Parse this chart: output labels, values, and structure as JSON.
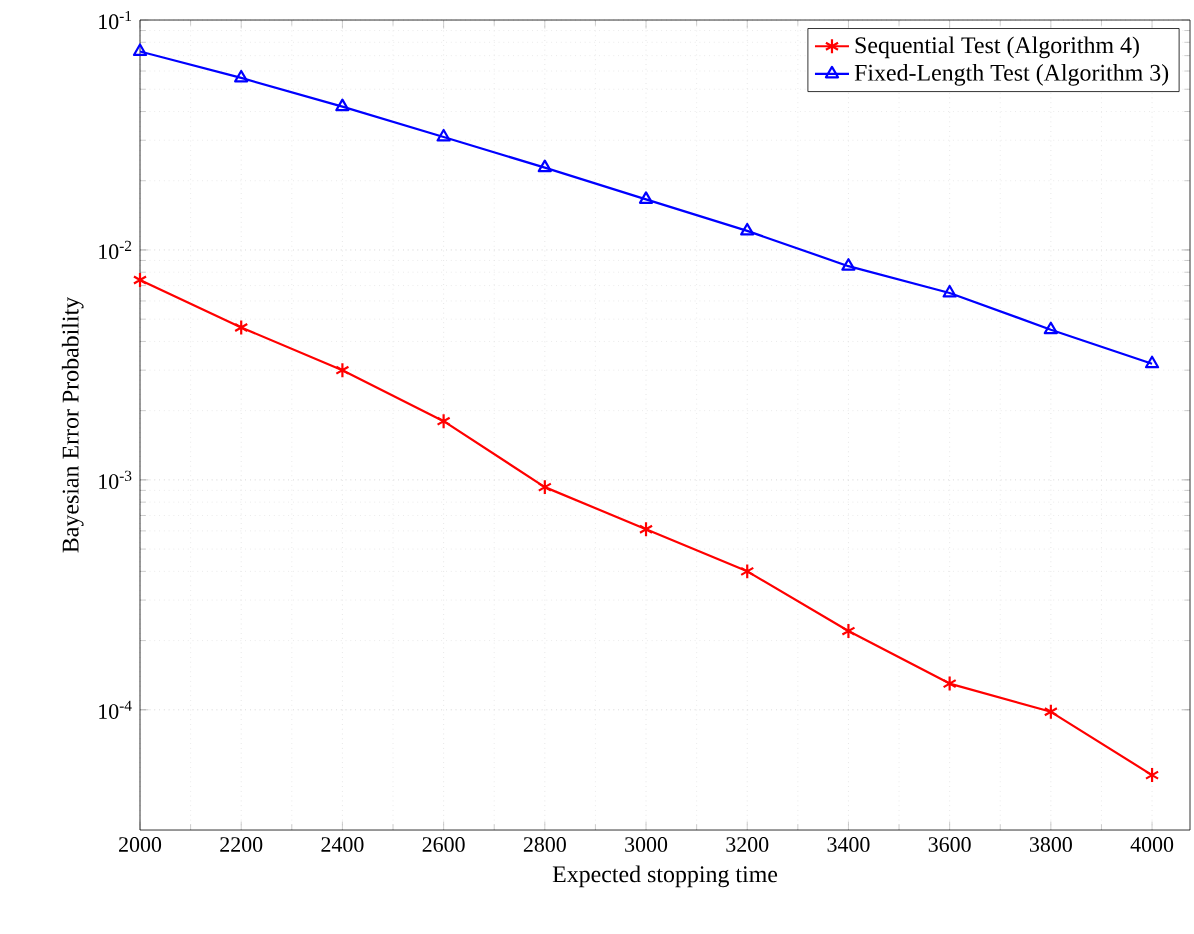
{
  "chart_data": {
    "type": "line",
    "xlabel": "Expected stopping time",
    "ylabel": "Bayesian Error Probability",
    "log": "y",
    "grid": true,
    "legend": "top right",
    "line_style": "solid",
    "x": [
      2000,
      2200,
      2400,
      2600,
      2800,
      3000,
      3200,
      3400,
      3600,
      3800,
      4000
    ],
    "xlim": [
      2000,
      4075
    ],
    "xticks": [
      2000,
      2200,
      2400,
      2600,
      2800,
      3000,
      3200,
      3400,
      3600,
      3800,
      4000
    ],
    "ylim": [
      3e-05,
      0.1
    ],
    "yticks": [
      {
        "value": 0.0001,
        "label": "10$^{-4}$"
      },
      {
        "value": 0.001,
        "label": "10$^{-3}$"
      },
      {
        "value": 0.01,
        "label": "10$^{-2}$"
      },
      {
        "value": 0.1,
        "label": "10$^{-1}$"
      }
    ],
    "series": [
      {
        "name": "Sequential Test (Algorithm 4)",
        "color": "#ff0000",
        "marker": "cross",
        "values": [
          0.0074,
          0.0046,
          0.003,
          0.0018,
          0.00093,
          0.00061,
          0.0004,
          0.00022,
          0.00013,
          9.8e-05,
          5.2e-05
        ]
      },
      {
        "name": "Fixed-Length Test (Algorithm 3)",
        "color": "#0000ff",
        "marker": "triangle",
        "values": [
          0.073,
          0.056,
          0.042,
          0.031,
          0.0228,
          0.0166,
          0.0121,
          0.0085,
          0.0065,
          0.0045,
          0.0032
        ]
      }
    ]
  }
}
